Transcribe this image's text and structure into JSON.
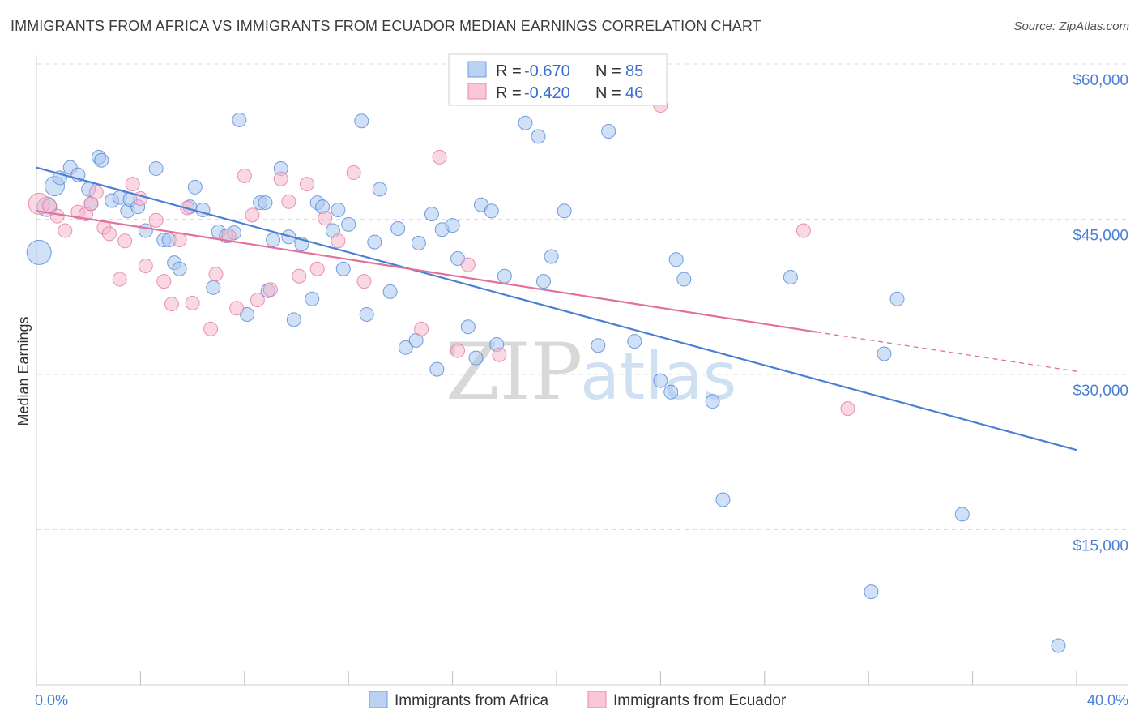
{
  "title": "IMMIGRANTS FROM AFRICA VS IMMIGRANTS FROM ECUADOR MEDIAN EARNINGS CORRELATION CHART",
  "source": "Source: ZipAtlas.com",
  "watermark": {
    "zip": "ZIP",
    "atlas": "atlas"
  },
  "colors": {
    "africa": "#4a7fd4",
    "ecuador": "#e2709b",
    "africa_fill": "#a9c6ef",
    "ecuador_fill": "#f5b8cc"
  },
  "chart_data": {
    "type": "scatter",
    "ylabel": "Median Earnings",
    "xlim": [
      0,
      40
    ],
    "ylim": [
      0,
      61500
    ],
    "x_tick_labels": {
      "left": "0.0%",
      "right": "40.0%"
    },
    "y_ticks": [
      {
        "value": 15000,
        "label": "$15,000"
      },
      {
        "value": 30000,
        "label": "$30,000"
      },
      {
        "value": 45000,
        "label": "$45,000"
      },
      {
        "value": 60000,
        "label": "$60,000"
      }
    ],
    "legend": [
      {
        "r_label": "R = ",
        "r_value": "-0.670",
        "n_label": "N = ",
        "n_value": "85"
      },
      {
        "r_label": "R = ",
        "r_value": "-0.420",
        "n_label": "N = ",
        "n_value": "46"
      }
    ],
    "series": [
      {
        "name": "Immigrants from Africa",
        "trend": {
          "x0": 0,
          "y0": 50000,
          "x1": 40,
          "y1": 22700
        },
        "points": [
          [
            0.1,
            41800
          ],
          [
            0.4,
            46200
          ],
          [
            0.7,
            48200
          ],
          [
            0.9,
            49000
          ],
          [
            1.3,
            50000
          ],
          [
            1.6,
            49300
          ],
          [
            2.0,
            47900
          ],
          [
            2.1,
            46500
          ],
          [
            2.4,
            51000
          ],
          [
            2.5,
            50700
          ],
          [
            2.9,
            46800
          ],
          [
            3.2,
            47100
          ],
          [
            3.5,
            45800
          ],
          [
            3.6,
            46900
          ],
          [
            3.9,
            46200
          ],
          [
            4.2,
            43900
          ],
          [
            4.6,
            49900
          ],
          [
            4.9,
            43000
          ],
          [
            5.1,
            43000
          ],
          [
            5.3,
            40800
          ],
          [
            5.5,
            40200
          ],
          [
            5.9,
            46200
          ],
          [
            6.1,
            48100
          ],
          [
            6.4,
            45900
          ],
          [
            6.8,
            38400
          ],
          [
            7.0,
            43800
          ],
          [
            7.3,
            43400
          ],
          [
            7.6,
            43700
          ],
          [
            7.8,
            54600
          ],
          [
            8.1,
            35800
          ],
          [
            8.6,
            46600
          ],
          [
            8.8,
            46600
          ],
          [
            8.9,
            38100
          ],
          [
            9.1,
            43000
          ],
          [
            9.4,
            49900
          ],
          [
            9.7,
            43300
          ],
          [
            9.9,
            35300
          ],
          [
            10.2,
            42600
          ],
          [
            10.6,
            37300
          ],
          [
            10.8,
            46600
          ],
          [
            11.0,
            46200
          ],
          [
            11.4,
            43900
          ],
          [
            11.6,
            45900
          ],
          [
            11.8,
            40200
          ],
          [
            12.0,
            44500
          ],
          [
            12.5,
            54500
          ],
          [
            12.7,
            35800
          ],
          [
            13.0,
            42800
          ],
          [
            13.2,
            47900
          ],
          [
            13.6,
            38000
          ],
          [
            13.9,
            44100
          ],
          [
            14.2,
            32600
          ],
          [
            14.6,
            33300
          ],
          [
            14.7,
            42700
          ],
          [
            15.2,
            45500
          ],
          [
            15.4,
            30500
          ],
          [
            15.6,
            44000
          ],
          [
            16.0,
            44400
          ],
          [
            16.2,
            41200
          ],
          [
            16.6,
            34600
          ],
          [
            16.9,
            31600
          ],
          [
            17.1,
            46400
          ],
          [
            17.5,
            45800
          ],
          [
            17.7,
            32900
          ],
          [
            18.0,
            39500
          ],
          [
            18.8,
            54300
          ],
          [
            19.3,
            53000
          ],
          [
            19.5,
            39000
          ],
          [
            19.8,
            41400
          ],
          [
            20.3,
            45800
          ],
          [
            21.6,
            32800
          ],
          [
            22.0,
            53500
          ],
          [
            23.0,
            33200
          ],
          [
            24.0,
            29400
          ],
          [
            24.4,
            28300
          ],
          [
            24.6,
            41100
          ],
          [
            24.9,
            39200
          ],
          [
            26.0,
            27400
          ],
          [
            26.4,
            17900
          ],
          [
            29.0,
            39400
          ],
          [
            32.1,
            9000
          ],
          [
            32.6,
            32000
          ],
          [
            33.1,
            37300
          ],
          [
            35.6,
            16500
          ],
          [
            39.3,
            3800
          ]
        ]
      },
      {
        "name": "Immigrants from Ecuador",
        "trend": {
          "x0": 0,
          "y0": 45800,
          "x1": 30,
          "y1": 34100,
          "dash_x1": 40,
          "dash_y1": 30300
        },
        "points": [
          [
            0.1,
            46500
          ],
          [
            0.5,
            46300
          ],
          [
            0.8,
            45300
          ],
          [
            1.1,
            43900
          ],
          [
            1.6,
            45700
          ],
          [
            1.9,
            45500
          ],
          [
            2.1,
            46500
          ],
          [
            2.3,
            47600
          ],
          [
            2.6,
            44200
          ],
          [
            2.8,
            43600
          ],
          [
            3.2,
            39200
          ],
          [
            3.4,
            42900
          ],
          [
            3.7,
            48400
          ],
          [
            4.0,
            47000
          ],
          [
            4.2,
            40500
          ],
          [
            4.6,
            44900
          ],
          [
            4.9,
            39000
          ],
          [
            5.2,
            36800
          ],
          [
            5.5,
            43000
          ],
          [
            5.8,
            46100
          ],
          [
            6.0,
            36900
          ],
          [
            6.7,
            34400
          ],
          [
            6.9,
            39700
          ],
          [
            7.4,
            43400
          ],
          [
            7.7,
            36400
          ],
          [
            8.0,
            49200
          ],
          [
            8.3,
            45400
          ],
          [
            8.5,
            37200
          ],
          [
            9.0,
            38200
          ],
          [
            9.4,
            48900
          ],
          [
            9.7,
            46700
          ],
          [
            10.1,
            39500
          ],
          [
            10.4,
            48400
          ],
          [
            10.8,
            40200
          ],
          [
            11.1,
            45100
          ],
          [
            11.6,
            42900
          ],
          [
            12.2,
            49500
          ],
          [
            12.6,
            39000
          ],
          [
            14.8,
            34400
          ],
          [
            15.5,
            51000
          ],
          [
            16.2,
            32300
          ],
          [
            16.6,
            40600
          ],
          [
            17.8,
            31900
          ],
          [
            24.0,
            56000
          ],
          [
            29.5,
            43900
          ],
          [
            31.2,
            26700
          ]
        ]
      }
    ]
  }
}
